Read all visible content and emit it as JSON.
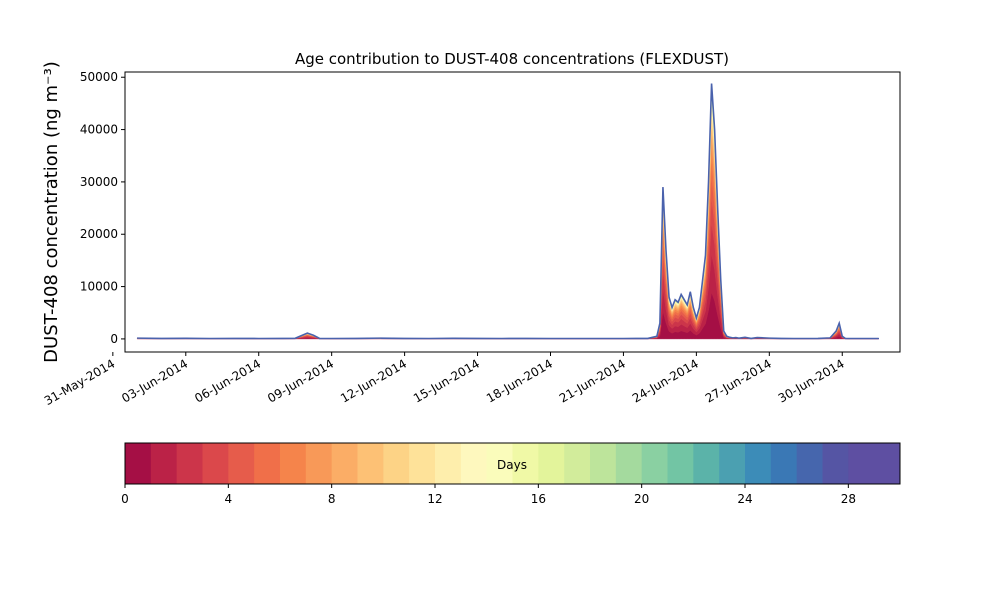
{
  "chart_data": {
    "type": "area",
    "stacked": true,
    "title": "Age contribution to DUST-408 concentrations (FLEXDUST)",
    "ylabel": "DUST-408 concentration (ng m⁻³)",
    "xlabel": "",
    "xlim": [
      "2014-05-31T12:00",
      "2014-07-02T09:00"
    ],
    "ylim": [
      -2500,
      51000
    ],
    "yticks": [
      0,
      10000,
      20000,
      30000,
      40000,
      50000
    ],
    "xtick_labels": [
      "31-May-2014",
      "03-Jun-2014",
      "06-Jun-2014",
      "09-Jun-2014",
      "12-Jun-2014",
      "15-Jun-2014",
      "18-Jun-2014",
      "21-Jun-2014",
      "24-Jun-2014",
      "27-Jun-2014",
      "30-Jun-2014"
    ],
    "grid": false,
    "series_note_colormap": "Spectral, 30 daily age classes",
    "x": [
      "2014-06-01T00:00",
      "2014-06-02T00:00",
      "2014-06-03T00:00",
      "2014-06-04T00:00",
      "2014-06-05T00:00",
      "2014-06-06T00:00",
      "2014-06-07T00:00",
      "2014-06-07T12:00",
      "2014-06-08T00:00",
      "2014-06-08T06:00",
      "2014-06-08T12:00",
      "2014-06-09T00:00",
      "2014-06-10T00:00",
      "2014-06-11T00:00",
      "2014-06-12T00:00",
      "2014-06-13T00:00",
      "2014-06-14T00:00",
      "2014-06-15T00:00",
      "2014-06-16T00:00",
      "2014-06-17T00:00",
      "2014-06-18T00:00",
      "2014-06-19T00:00",
      "2014-06-20T00:00",
      "2014-06-21T00:00",
      "2014-06-22T00:00",
      "2014-06-22T09:00",
      "2014-06-22T12:00",
      "2014-06-22T15:00",
      "2014-06-22T18:00",
      "2014-06-22T21:00",
      "2014-06-23T00:00",
      "2014-06-23T03:00",
      "2014-06-23T06:00",
      "2014-06-23T09:00",
      "2014-06-23T12:00",
      "2014-06-23T15:00",
      "2014-06-23T18:00",
      "2014-06-23T21:00",
      "2014-06-24T00:00",
      "2014-06-24T03:00",
      "2014-06-24T06:00",
      "2014-06-24T09:00",
      "2014-06-24T12:00",
      "2014-06-24T15:00",
      "2014-06-24T18:00",
      "2014-06-24T21:00",
      "2014-06-25T00:00",
      "2014-06-25T03:00",
      "2014-06-25T06:00",
      "2014-06-25T09:00",
      "2014-06-25T12:00",
      "2014-06-25T15:00",
      "2014-06-25T18:00",
      "2014-06-26T00:00",
      "2014-06-26T06:00",
      "2014-06-26T12:00",
      "2014-06-27T00:00",
      "2014-06-27T12:00",
      "2014-06-28T00:00",
      "2014-06-28T12:00",
      "2014-06-29T00:00",
      "2014-06-29T12:00",
      "2014-06-29T18:00",
      "2014-06-29T21:00",
      "2014-06-30T00:00",
      "2014-06-30T03:00",
      "2014-06-30T06:00",
      "2014-06-30T12:00",
      "2014-07-01T00:00",
      "2014-07-01T12:00"
    ],
    "total": [
      150,
      100,
      120,
      80,
      100,
      80,
      100,
      120,
      1100,
      700,
      100,
      80,
      100,
      150,
      100,
      80,
      120,
      100,
      80,
      100,
      80,
      80,
      80,
      80,
      100,
      500,
      3000,
      29000,
      17000,
      8000,
      6000,
      7500,
      7000,
      8500,
      7500,
      6500,
      9000,
      6000,
      4000,
      6000,
      11000,
      16000,
      30000,
      48800,
      40000,
      25000,
      11500,
      1500,
      500,
      300,
      200,
      250,
      150,
      300,
      100,
      250,
      150,
      100,
      80,
      80,
      100,
      200,
      1500,
      3000,
      500,
      100,
      80,
      80,
      80,
      80
    ],
    "colorbar": {
      "label": "Days",
      "ticks": [
        0,
        4,
        8,
        12,
        16,
        20,
        24,
        28
      ],
      "range": [
        0,
        30
      ],
      "colors": [
        "#a50f45",
        "#bb2247",
        "#cc354a",
        "#db484b",
        "#e65c4b",
        "#f06f49",
        "#f5844b",
        "#f89958",
        "#fbad66",
        "#fdc175",
        "#fdd386",
        "#fee299",
        "#feeeac",
        "#fef8be",
        "#fafcbb",
        "#f0f9a6",
        "#e3f49b",
        "#d2ec9b",
        "#bde49b",
        "#a4da9e",
        "#8ad0a2",
        "#72c5a4",
        "#5bb3a9",
        "#4ba0b1",
        "#3c8cb8",
        "#3a78b5",
        "#4666ad",
        "#5555a4",
        "#5e4fa2",
        "#5e4fa2"
      ]
    }
  }
}
